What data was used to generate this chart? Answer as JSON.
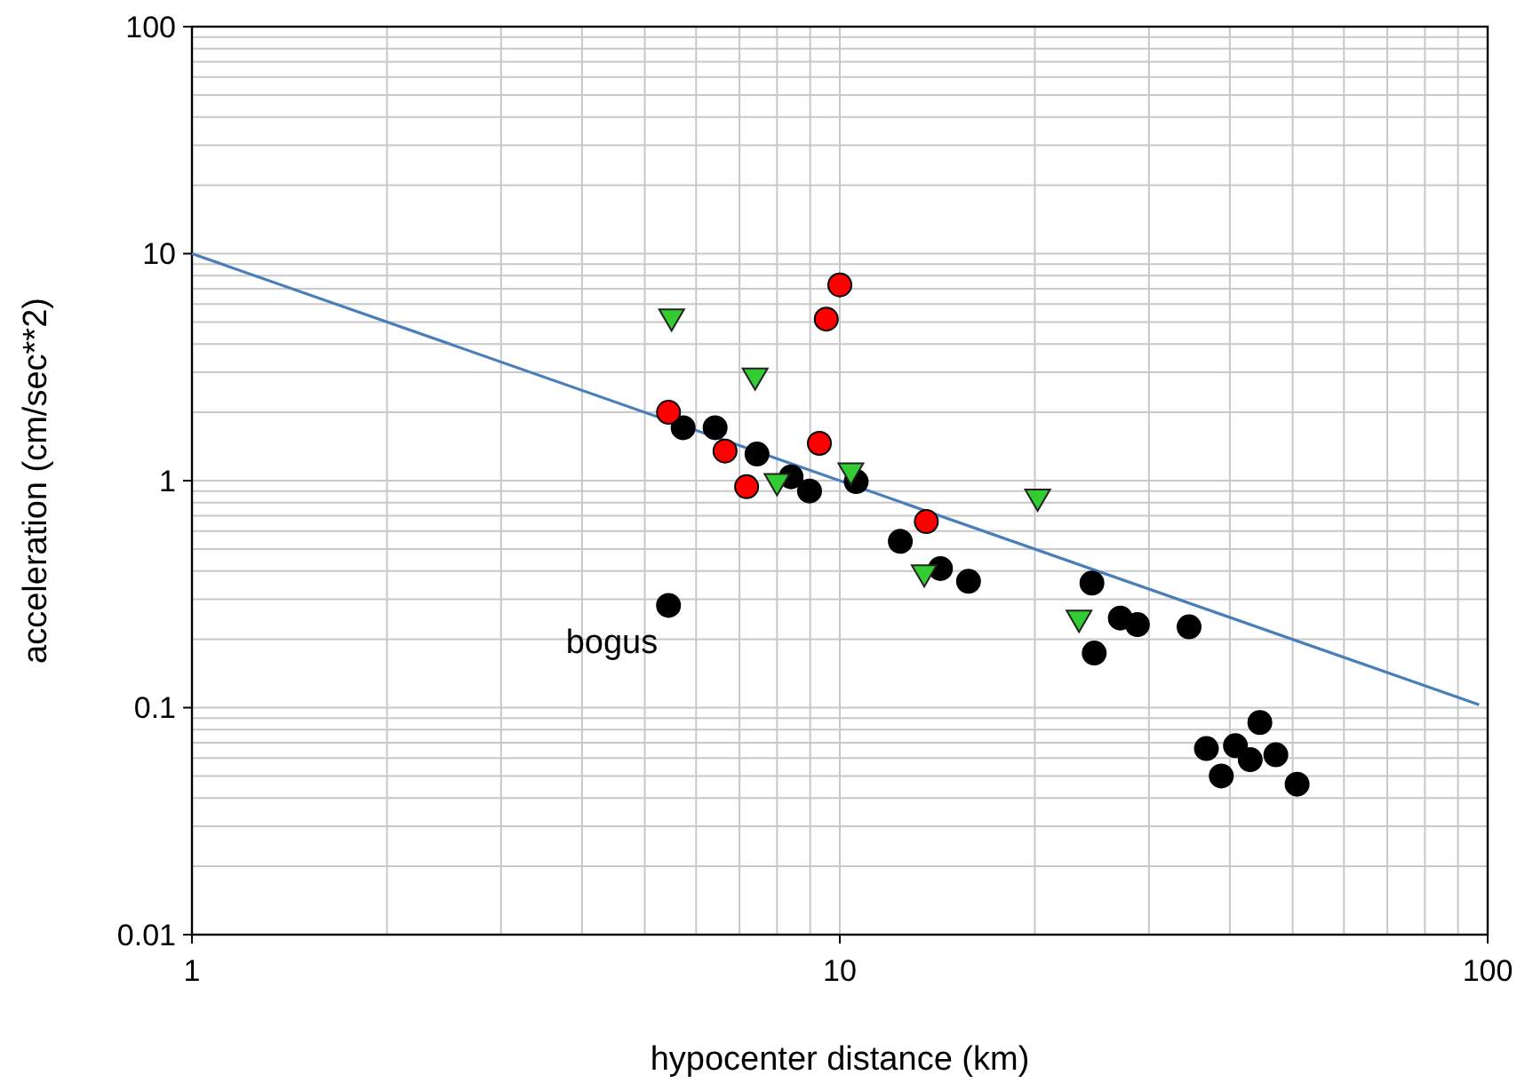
{
  "chart_data": {
    "type": "scatter",
    "xlabel": "hypocenter distance (km)",
    "ylabel": "acceleration (cm/sec**2)",
    "log": "xy",
    "grid": true,
    "xlim": [
      1,
      100
    ],
    "xticks": [
      1,
      10,
      100
    ],
    "ylim": [
      0.01,
      100
    ],
    "yticks": [
      0.01,
      0.1,
      1,
      10,
      100
    ],
    "series": [
      {
        "type": "line",
        "color": "#4a7ebb",
        "marker": "none",
        "x": [
          1,
          97
        ],
        "values": [
          10,
          0.103
        ]
      },
      {
        "color": "#000000",
        "marker": "circle",
        "x": [
          5.73,
          6.42,
          7.45,
          8.41,
          8.98,
          10.6,
          12.4,
          14.3,
          15.8,
          24.5,
          24.7,
          27.1,
          28.8,
          34.6,
          5.44,
          36.8,
          38.8,
          40.8,
          43.0,
          44.5,
          47.1,
          50.8
        ],
        "values": [
          1.71,
          1.71,
          1.31,
          1.04,
          0.9,
          0.99,
          0.54,
          0.41,
          0.36,
          0.354,
          0.174,
          0.248,
          0.232,
          0.227,
          0.282,
          0.066,
          0.05,
          0.068,
          0.059,
          0.086,
          0.062,
          0.046
        ]
      },
      {
        "color": "#ff0000",
        "marker": "circle",
        "x": [
          5.44,
          6.65,
          7.18,
          9.3,
          9.53,
          10.0,
          13.6
        ],
        "values": [
          2.0,
          1.35,
          0.94,
          1.46,
          5.15,
          7.28,
          0.66
        ]
      },
      {
        "color": "#33cc33",
        "marker": "triangle",
        "x": [
          5.5,
          7.4,
          8.0,
          10.4,
          13.5,
          20.2,
          23.4
        ],
        "values": [
          5.1,
          2.8,
          0.96,
          1.07,
          0.38,
          0.82,
          0.24
        ]
      }
    ],
    "annotations": [
      {
        "text": "bogus",
        "x": 5.44,
        "y": 0.282
      }
    ]
  }
}
